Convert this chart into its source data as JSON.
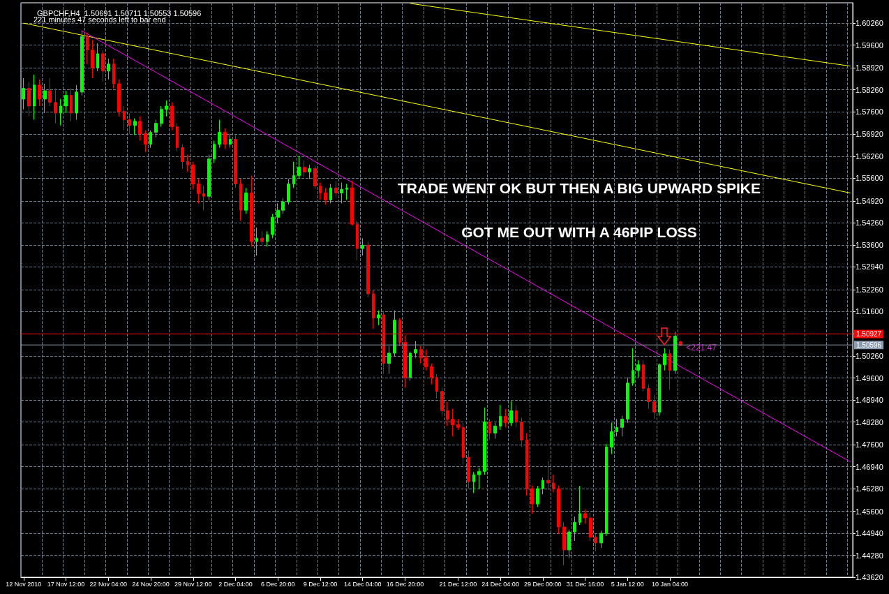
{
  "chart_data": {
    "type": "candlestick",
    "title": "GBPCHF,H4  1.50691 1.50711 1.50553 1.50596",
    "annotations": [
      "221 minutes 47 seconds left to bar end",
      "TRADE WENT OK BUT THEN A BIG UPWARD SPIKE",
      "GOT ME OUT WITH A 46PIP LOSS",
      "<221:47"
    ],
    "categories": [
      "12 Nov 2010",
      null,
      null,
      null,
      null,
      null,
      null,
      null,
      "17 Nov 12:00",
      null,
      null,
      null,
      null,
      null,
      null,
      null,
      "22 Nov 04:00",
      null,
      null,
      null,
      null,
      null,
      null,
      null,
      "24 Nov 20:00",
      null,
      null,
      null,
      null,
      null,
      null,
      null,
      "29 Nov 12:00",
      null,
      null,
      null,
      null,
      null,
      null,
      null,
      "2 Dec 04:00",
      null,
      null,
      null,
      null,
      null,
      null,
      null,
      "6 Dec 20:00",
      null,
      null,
      null,
      null,
      null,
      null,
      null,
      "9 Dec 12:00",
      null,
      null,
      null,
      null,
      null,
      null,
      null,
      "14 Dec 04:00",
      null,
      null,
      null,
      null,
      null,
      null,
      null,
      "16 Dec 20:00",
      null,
      null,
      null,
      null,
      null,
      null,
      null,
      null,
      null,
      "21 Dec 12:00",
      null,
      null,
      null,
      null,
      null,
      null,
      null,
      "24 Dec 04:00",
      null,
      null,
      null,
      null,
      null,
      null,
      null,
      "29 Dec 00:00",
      null,
      null,
      null,
      null,
      null,
      null,
      null,
      "31 Dec 16:00",
      null,
      null,
      null,
      null,
      null,
      null,
      null,
      "5 Jan 12:00",
      null,
      null,
      null,
      null,
      null,
      null,
      null,
      "10 Jan 04:00",
      null,
      null,
      null,
      null,
      null,
      null,
      null,
      null,
      null,
      null,
      null,
      null,
      null,
      null,
      null,
      null,
      null,
      null,
      null,
      null,
      null,
      null,
      null,
      null,
      null,
      null,
      null,
      null,
      null,
      null,
      null,
      null,
      null,
      null
    ],
    "ohlc": [
      [
        1.5798,
        1.5861,
        1.5767,
        1.583
      ],
      [
        1.583,
        1.585,
        1.5746,
        1.5777
      ],
      [
        1.5777,
        1.5871,
        1.5736,
        1.584
      ],
      [
        1.584,
        1.5857,
        1.5777,
        1.5798
      ],
      [
        1.5798,
        1.5844,
        1.5756,
        1.5823
      ],
      [
        1.5823,
        1.5861,
        1.5777,
        1.5788
      ],
      [
        1.5788,
        1.583,
        1.5725,
        1.5756
      ],
      [
        1.5756,
        1.5798,
        1.5719,
        1.5777
      ],
      [
        1.5777,
        1.5823,
        1.5756,
        1.5809
      ],
      [
        1.5809,
        1.583,
        1.5731,
        1.5756
      ],
      [
        1.5756,
        1.584,
        1.5736,
        1.5819
      ],
      [
        1.5819,
        1.6003,
        1.5809,
        1.5986
      ],
      [
        1.5986,
        1.5997,
        1.5903,
        1.5945
      ],
      [
        1.5945,
        1.5976,
        1.5861,
        1.5892
      ],
      [
        1.5892,
        1.5965,
        1.5882,
        1.5934
      ],
      [
        1.5934,
        1.5945,
        1.585,
        1.5882
      ],
      [
        1.5882,
        1.5919,
        1.5857,
        1.5903
      ],
      [
        1.5903,
        1.5919,
        1.583,
        1.5844
      ],
      [
        1.5844,
        1.5857,
        1.5746,
        1.5761
      ],
      [
        1.5761,
        1.5777,
        1.5704,
        1.5736
      ],
      [
        1.5736,
        1.5756,
        1.5694,
        1.5719
      ],
      [
        1.5719,
        1.574,
        1.569,
        1.5731
      ],
      [
        1.5731,
        1.5746,
        1.5673,
        1.5694
      ],
      [
        1.5694,
        1.5704,
        1.5639,
        1.5662
      ],
      [
        1.5662,
        1.5704,
        1.5652,
        1.5698
      ],
      [
        1.5698,
        1.5736,
        1.5683,
        1.5725
      ],
      [
        1.5725,
        1.5777,
        1.5715,
        1.5767
      ],
      [
        1.5767,
        1.5794,
        1.5746,
        1.5777
      ],
      [
        1.5777,
        1.5788,
        1.5704,
        1.5715
      ],
      [
        1.5715,
        1.5725,
        1.5641,
        1.5652
      ],
      [
        1.5652,
        1.5662,
        1.5589,
        1.561
      ],
      [
        1.561,
        1.5631,
        1.5579,
        1.56
      ],
      [
        1.56,
        1.561,
        1.5527,
        1.5543
      ],
      [
        1.5543,
        1.5558,
        1.5485,
        1.5514
      ],
      [
        1.5514,
        1.5537,
        1.5464,
        1.5506
      ],
      [
        1.5506,
        1.5631,
        1.5495,
        1.5618
      ],
      [
        1.5618,
        1.5673,
        1.5606,
        1.5662
      ],
      [
        1.5662,
        1.5736,
        1.5652,
        1.5698
      ],
      [
        1.5698,
        1.571,
        1.5648,
        1.5662
      ],
      [
        1.5662,
        1.5694,
        1.5652,
        1.5677
      ],
      [
        1.5677,
        1.569,
        1.5531,
        1.5543
      ],
      [
        1.5543,
        1.5558,
        1.5432,
        1.5464
      ],
      [
        1.5464,
        1.5531,
        1.5453,
        1.5516
      ],
      [
        1.5516,
        1.5568,
        1.5355,
        1.537
      ],
      [
        1.537,
        1.5412,
        1.5328,
        1.538
      ],
      [
        1.538,
        1.5401,
        1.5359,
        1.537
      ],
      [
        1.537,
        1.5401,
        1.5355,
        1.5391
      ],
      [
        1.5391,
        1.5453,
        1.538,
        1.5443
      ],
      [
        1.5443,
        1.5485,
        1.5426,
        1.5464
      ],
      [
        1.5464,
        1.5501,
        1.5453,
        1.5489
      ],
      [
        1.5489,
        1.5558,
        1.5481,
        1.5543
      ],
      [
        1.5543,
        1.561,
        1.5531,
        1.5568
      ],
      [
        1.5568,
        1.5627,
        1.5558,
        1.5593
      ],
      [
        1.5593,
        1.5614,
        1.5564,
        1.5579
      ],
      [
        1.5579,
        1.56,
        1.5558,
        1.5589
      ],
      [
        1.5589,
        1.5598,
        1.5527,
        1.5537
      ],
      [
        1.5537,
        1.5547,
        1.5495,
        1.5516
      ],
      [
        1.5516,
        1.5531,
        1.5481,
        1.5495
      ],
      [
        1.5495,
        1.5543,
        1.5485,
        1.5531
      ],
      [
        1.5531,
        1.5552,
        1.5501,
        1.5516
      ],
      [
        1.5516,
        1.5547,
        1.5485,
        1.5527
      ],
      [
        1.5527,
        1.5543,
        1.5495,
        1.5531
      ],
      [
        1.5531,
        1.5552,
        1.5418,
        1.5422
      ],
      [
        1.5422,
        1.5432,
        1.5313,
        1.5349
      ],
      [
        1.5349,
        1.538,
        1.5328,
        1.5359
      ],
      [
        1.5359,
        1.537,
        1.5203,
        1.5213
      ],
      [
        1.5213,
        1.5223,
        1.5108,
        1.514
      ],
      [
        1.514,
        1.5163,
        1.5119,
        1.515
      ],
      [
        1.515,
        1.5161,
        1.4973,
        1.5004
      ],
      [
        1.5004,
        1.5056,
        1.4973,
        1.5035
      ],
      [
        1.5035,
        1.5163,
        1.5025,
        1.5134
      ],
      [
        1.5134,
        1.514,
        1.5056,
        1.5067
      ],
      [
        1.5067,
        1.5088,
        1.4931,
        1.4962
      ],
      [
        1.4962,
        1.504,
        1.4952,
        1.5035
      ],
      [
        1.5035,
        1.5071,
        1.5021,
        1.5046
      ],
      [
        1.5046,
        1.5056,
        1.5004,
        1.5021
      ],
      [
        1.5021,
        1.5046,
        1.4983,
        1.4994
      ],
      [
        1.4994,
        1.5004,
        1.4941,
        1.4962
      ],
      [
        1.4962,
        1.4973,
        1.4899,
        1.492
      ],
      [
        1.492,
        1.4931,
        1.4847,
        1.4862
      ],
      [
        1.4862,
        1.4889,
        1.4816,
        1.4837
      ],
      [
        1.4837,
        1.4868,
        1.4785,
        1.482
      ],
      [
        1.482,
        1.4837,
        1.4805,
        1.4812
      ],
      [
        1.4812,
        1.4826,
        1.4701,
        1.4722
      ],
      [
        1.4722,
        1.4743,
        1.4628,
        1.4649
      ],
      [
        1.4649,
        1.4678,
        1.4615,
        1.467
      ],
      [
        1.467,
        1.469,
        1.4628,
        1.468
      ],
      [
        1.468,
        1.4872,
        1.467,
        1.4828
      ],
      [
        1.4828,
        1.4837,
        1.4774,
        1.4795
      ],
      [
        1.4795,
        1.4826,
        1.4778,
        1.4816
      ],
      [
        1.4816,
        1.4879,
        1.4805,
        1.4845
      ],
      [
        1.4845,
        1.4868,
        1.4812,
        1.4826
      ],
      [
        1.4826,
        1.4891,
        1.4816,
        1.4862
      ],
      [
        1.4862,
        1.4879,
        1.4812,
        1.4828
      ],
      [
        1.4828,
        1.4841,
        1.4753,
        1.4774
      ],
      [
        1.4774,
        1.4795,
        1.4607,
        1.4628
      ],
      [
        1.4628,
        1.4638,
        1.4553,
        1.4582
      ],
      [
        1.4582,
        1.4636,
        1.4573,
        1.4628
      ],
      [
        1.4628,
        1.4661,
        1.4611,
        1.4653
      ],
      [
        1.4653,
        1.4711,
        1.4624,
        1.4645
      ],
      [
        1.4645,
        1.467,
        1.4617,
        1.4628
      ],
      [
        1.4628,
        1.4638,
        1.4492,
        1.4513
      ],
      [
        1.4513,
        1.4527,
        1.4398,
        1.4444
      ],
      [
        1.4444,
        1.4505,
        1.4419,
        1.4498
      ],
      [
        1.4498,
        1.4544,
        1.4471,
        1.4527
      ],
      [
        1.4527,
        1.4636,
        1.4519,
        1.4553
      ],
      [
        1.4553,
        1.4565,
        1.4523,
        1.454
      ],
      [
        1.454,
        1.4555,
        1.4471,
        1.4482
      ],
      [
        1.4482,
        1.4492,
        1.444,
        1.4465
      ],
      [
        1.4465,
        1.4502,
        1.445,
        1.4494
      ],
      [
        1.4494,
        1.4762,
        1.4486,
        1.4753
      ],
      [
        1.4753,
        1.4826,
        1.4732,
        1.4799
      ],
      [
        1.4799,
        1.4837,
        1.4785,
        1.4812
      ],
      [
        1.4812,
        1.4847,
        1.4785,
        1.4837
      ],
      [
        1.4837,
        1.4962,
        1.4826,
        1.4945
      ],
      [
        1.4945,
        1.505,
        1.4937,
        1.4983
      ],
      [
        1.4983,
        1.5014,
        1.4962,
        1.5
      ],
      [
        1.5,
        1.5014,
        1.492,
        1.4929
      ],
      [
        1.4929,
        1.4941,
        1.4868,
        1.4889
      ],
      [
        1.4889,
        1.491,
        1.4837,
        1.4858
      ],
      [
        1.4858,
        1.5004,
        1.4847,
        1.5
      ],
      [
        1.5,
        1.505,
        1.4983,
        1.5033
      ],
      [
        1.5033,
        1.5046,
        1.4925,
        1.4983
      ],
      [
        1.4983,
        1.51,
        1.4973,
        1.5086
      ],
      [
        1.50691,
        1.50711,
        1.50553,
        1.50596
      ],
      null,
      null,
      null,
      null,
      null,
      null,
      null,
      null,
      null,
      null,
      null,
      null,
      null,
      null,
      null,
      null,
      null,
      null,
      null,
      null,
      null,
      null,
      null,
      null,
      null,
      null,
      null,
      null,
      null,
      null,
      null,
      null
    ],
    "colors": [
      "#00ff00",
      "#ff0000",
      "#00ff00",
      "#ff0000",
      "#00ff00",
      "#ff0000",
      "#ff0000",
      "#00ff00",
      "#00ff00",
      "#ff0000",
      "#00ff00",
      "#00ff00",
      "#ff0000",
      "#ff0000",
      "#00ff00",
      "#ff0000",
      "#00ff00",
      "#ff0000",
      "#ff0000",
      "#ff0000",
      "#ff0000",
      "#00ff00",
      "#ff0000",
      "#ff0000",
      "#00ff00",
      "#00ff00",
      "#00ff00",
      "#00ff00",
      "#ff0000",
      "#ff0000",
      "#ff0000",
      "#ff0000",
      "#ff0000",
      "#ff0000",
      "#ff0000",
      "#00ff00",
      "#00ff00",
      "#00ff00",
      "#ff0000",
      "#00ff00",
      "#ff0000",
      "#ff0000",
      "#00ff00",
      "#ff0000",
      "#00ff00",
      "#ff0000",
      "#00ff00",
      "#00ff00",
      "#00ff00",
      "#00ff00",
      "#00ff00",
      "#00ff00",
      "#00ff00",
      "#ff0000",
      "#00ff00",
      "#ff0000",
      "#ff0000",
      "#ff0000",
      "#00ff00",
      "#ff0000",
      "#00ff00",
      "#00ff00",
      "#ff0000",
      "#ff0000",
      "#00ff00",
      "#ff0000",
      "#ff0000",
      "#00ff00",
      "#ff0000",
      "#00ff00",
      "#00ff00",
      "#ff0000",
      "#ff0000",
      "#00ff00",
      "#00ff00",
      "#ff0000",
      "#ff0000",
      "#ff0000",
      "#ff0000",
      "#ff0000",
      "#ff0000",
      "#ff0000",
      "#ff0000",
      "#ff0000",
      "#ff0000",
      "#00ff00",
      "#00ff00",
      "#00ff00",
      "#ff0000",
      "#00ff00",
      "#00ff00",
      "#ff0000",
      "#00ff00",
      "#ff0000",
      "#ff0000",
      "#ff0000",
      "#ff0000",
      "#00ff00",
      "#00ff00",
      "#ff0000",
      "#ff0000",
      "#ff0000",
      "#ff0000",
      "#00ff00",
      "#00ff00",
      "#00ff00",
      "#ff0000",
      "#ff0000",
      "#ff0000",
      "#00ff00",
      "#00ff00",
      "#00ff00",
      "#00ff00",
      "#00ff00",
      "#00ff00",
      "#00ff00",
      "#00ff00",
      "#ff0000",
      "#ff0000",
      "#ff0000",
      "#00ff00",
      "#00ff00",
      "#ff0000",
      "#00ff00",
      "#ff0000",
      null,
      null,
      null,
      null,
      null,
      null,
      null,
      null,
      null,
      null,
      null,
      null,
      null,
      null,
      null,
      null,
      null,
      null,
      null,
      null,
      null,
      null,
      null,
      null,
      null,
      null,
      null,
      null,
      null,
      null,
      null,
      null
    ],
    "series": [
      {
        "type": "line",
        "color": "#ffff00",
        "values": [
          1.6026,
          null,
          null,
          null,
          null,
          null,
          null,
          null,
          null,
          null,
          null,
          null,
          null,
          null,
          null,
          null,
          null,
          null,
          null,
          null,
          null,
          null,
          null,
          null,
          null,
          null,
          null,
          null,
          null,
          null,
          null,
          null,
          null,
          null,
          null,
          null,
          null,
          null,
          null,
          null,
          null,
          null,
          null,
          null,
          null,
          null,
          null,
          null,
          null,
          null,
          null,
          null,
          null,
          null,
          null,
          null,
          null,
          null,
          null,
          null,
          null,
          null,
          null,
          null,
          null,
          null,
          null,
          null,
          null,
          null,
          null,
          null,
          null,
          null,
          null,
          null,
          null,
          null,
          null,
          null,
          null,
          null,
          null,
          null,
          null,
          null,
          null,
          null,
          null,
          null,
          null,
          null,
          null,
          null,
          null,
          null,
          null,
          null,
          null,
          null,
          null,
          null,
          null,
          null,
          null,
          null,
          null,
          null,
          null,
          null,
          null,
          null,
          null,
          null,
          null,
          null,
          null,
          null,
          null,
          null,
          null,
          null,
          null,
          null,
          null,
          null,
          null,
          null,
          null,
          null,
          null,
          null,
          null,
          null,
          null,
          null,
          null,
          null,
          null,
          null,
          null,
          null,
          null,
          null,
          null,
          null,
          null,
          null,
          null,
          null,
          null,
          null,
          null,
          null,
          null,
          null,
          1.5516
        ]
      },
      {
        "type": "line",
        "color": "#ffff00",
        "values": [
          null,
          null,
          null,
          null,
          null,
          null,
          null,
          null,
          null,
          null,
          null,
          null,
          null,
          null,
          null,
          null,
          null,
          null,
          null,
          null,
          null,
          null,
          null,
          null,
          null,
          null,
          null,
          null,
          null,
          null,
          null,
          null,
          null,
          null,
          null,
          null,
          null,
          null,
          null,
          null,
          null,
          null,
          null,
          null,
          null,
          null,
          null,
          null,
          null,
          null,
          null,
          null,
          null,
          null,
          null,
          null,
          null,
          null,
          null,
          null,
          null,
          null,
          null,
          null,
          null,
          null,
          null,
          null,
          null,
          null,
          null,
          null,
          null,
          1.6085,
          null,
          null,
          null,
          null,
          null,
          null,
          null,
          null,
          null,
          null,
          null,
          null,
          null,
          null,
          null,
          null,
          null,
          null,
          null,
          null,
          null,
          null,
          null,
          null,
          null,
          null,
          null,
          null,
          null,
          null,
          null,
          null,
          null,
          null,
          null,
          null,
          null,
          null,
          null,
          null,
          null,
          null,
          null,
          null,
          null,
          null,
          null,
          null,
          null,
          null,
          null,
          null,
          null,
          null,
          null,
          null,
          null,
          null,
          null,
          null,
          null,
          null,
          null,
          null,
          null,
          null,
          null,
          null,
          null,
          null,
          null,
          null,
          null,
          null,
          null,
          null,
          null,
          null,
          null,
          null,
          null,
          null,
          1.5897
        ]
      },
      {
        "type": "line",
        "color": "#ff00ff",
        "values": [
          null,
          null,
          null,
          null,
          null,
          null,
          null,
          null,
          null,
          null,
          null,
          1.6003,
          null,
          null,
          null,
          null,
          null,
          null,
          null,
          null,
          null,
          null,
          null,
          null,
          null,
          null,
          null,
          null,
          null,
          null,
          null,
          null,
          null,
          null,
          null,
          null,
          null,
          null,
          null,
          null,
          null,
          null,
          null,
          null,
          null,
          null,
          null,
          null,
          null,
          null,
          null,
          null,
          null,
          null,
          null,
          null,
          null,
          null,
          null,
          null,
          null,
          null,
          null,
          null,
          null,
          null,
          null,
          null,
          null,
          null,
          null,
          null,
          null,
          null,
          null,
          null,
          null,
          null,
          null,
          null,
          null,
          null,
          null,
          null,
          null,
          null,
          null,
          null,
          null,
          null,
          null,
          null,
          null,
          null,
          null,
          null,
          null,
          null,
          null,
          null,
          null,
          null,
          null,
          null,
          null,
          null,
          null,
          null,
          null,
          null,
          null,
          null,
          null,
          null,
          null,
          null,
          null,
          null,
          null,
          null,
          null,
          null,
          null,
          null,
          null,
          null,
          null,
          null,
          null,
          null,
          null,
          null,
          null,
          null,
          null,
          null,
          null,
          null,
          null,
          null,
          null,
          null,
          null,
          null,
          null,
          null,
          null,
          null,
          null,
          null,
          null,
          null,
          null,
          null,
          null,
          null,
          1.4709
        ]
      }
    ],
    "ylim": [
      1.4362,
      1.6087
    ],
    "yticks": [
      {
        "value": 1.4362,
        "label": "1.43620"
      },
      {
        "value": 1.4428,
        "label": "1.44280"
      },
      {
        "value": 1.4494,
        "label": "1.44940"
      },
      {
        "value": 1.456,
        "label": "1.45600"
      },
      {
        "value": 1.4628,
        "label": "1.46280"
      },
      {
        "value": 1.4694,
        "label": "1.46940"
      },
      {
        "value": 1.476,
        "label": "1.47600"
      },
      {
        "value": 1.4828,
        "label": "1.48280"
      },
      {
        "value": 1.4894,
        "label": "1.48940"
      },
      {
        "value": 1.496,
        "label": "1.49600"
      },
      {
        "value": 1.5026,
        "label": "1.50260"
      },
      {
        "value": 1.5094,
        "label": null
      },
      {
        "value": 1.516,
        "label": "1.51600"
      },
      {
        "value": 1.5226,
        "label": "1.52260"
      },
      {
        "value": 1.5294,
        "label": "1.52940"
      },
      {
        "value": 1.536,
        "label": "1.53600"
      },
      {
        "value": 1.5426,
        "label": "1.54260"
      },
      {
        "value": 1.5492,
        "label": "1.54920"
      },
      {
        "value": 1.556,
        "label": "1.55600"
      },
      {
        "value": 1.5626,
        "label": "1.56260"
      },
      {
        "value": 1.5692,
        "label": "1.56920"
      },
      {
        "value": 1.576,
        "label": "1.57600"
      },
      {
        "value": 1.5826,
        "label": "1.58260"
      },
      {
        "value": 1.5892,
        "label": "1.58920"
      },
      {
        "value": 1.596,
        "label": "1.59600"
      },
      {
        "value": 1.6026,
        "label": "1.60260"
      }
    ],
    "ref_lines": [
      {
        "axis": "y",
        "value": 1.50927,
        "label": "1.50927",
        "color": "#ff0000"
      },
      {
        "axis": "y",
        "value": 1.50596,
        "label": "1.50596",
        "color": "#8c9cb0"
      }
    ],
    "grid": true,
    "marker": "none",
    "line_style": "solid"
  }
}
